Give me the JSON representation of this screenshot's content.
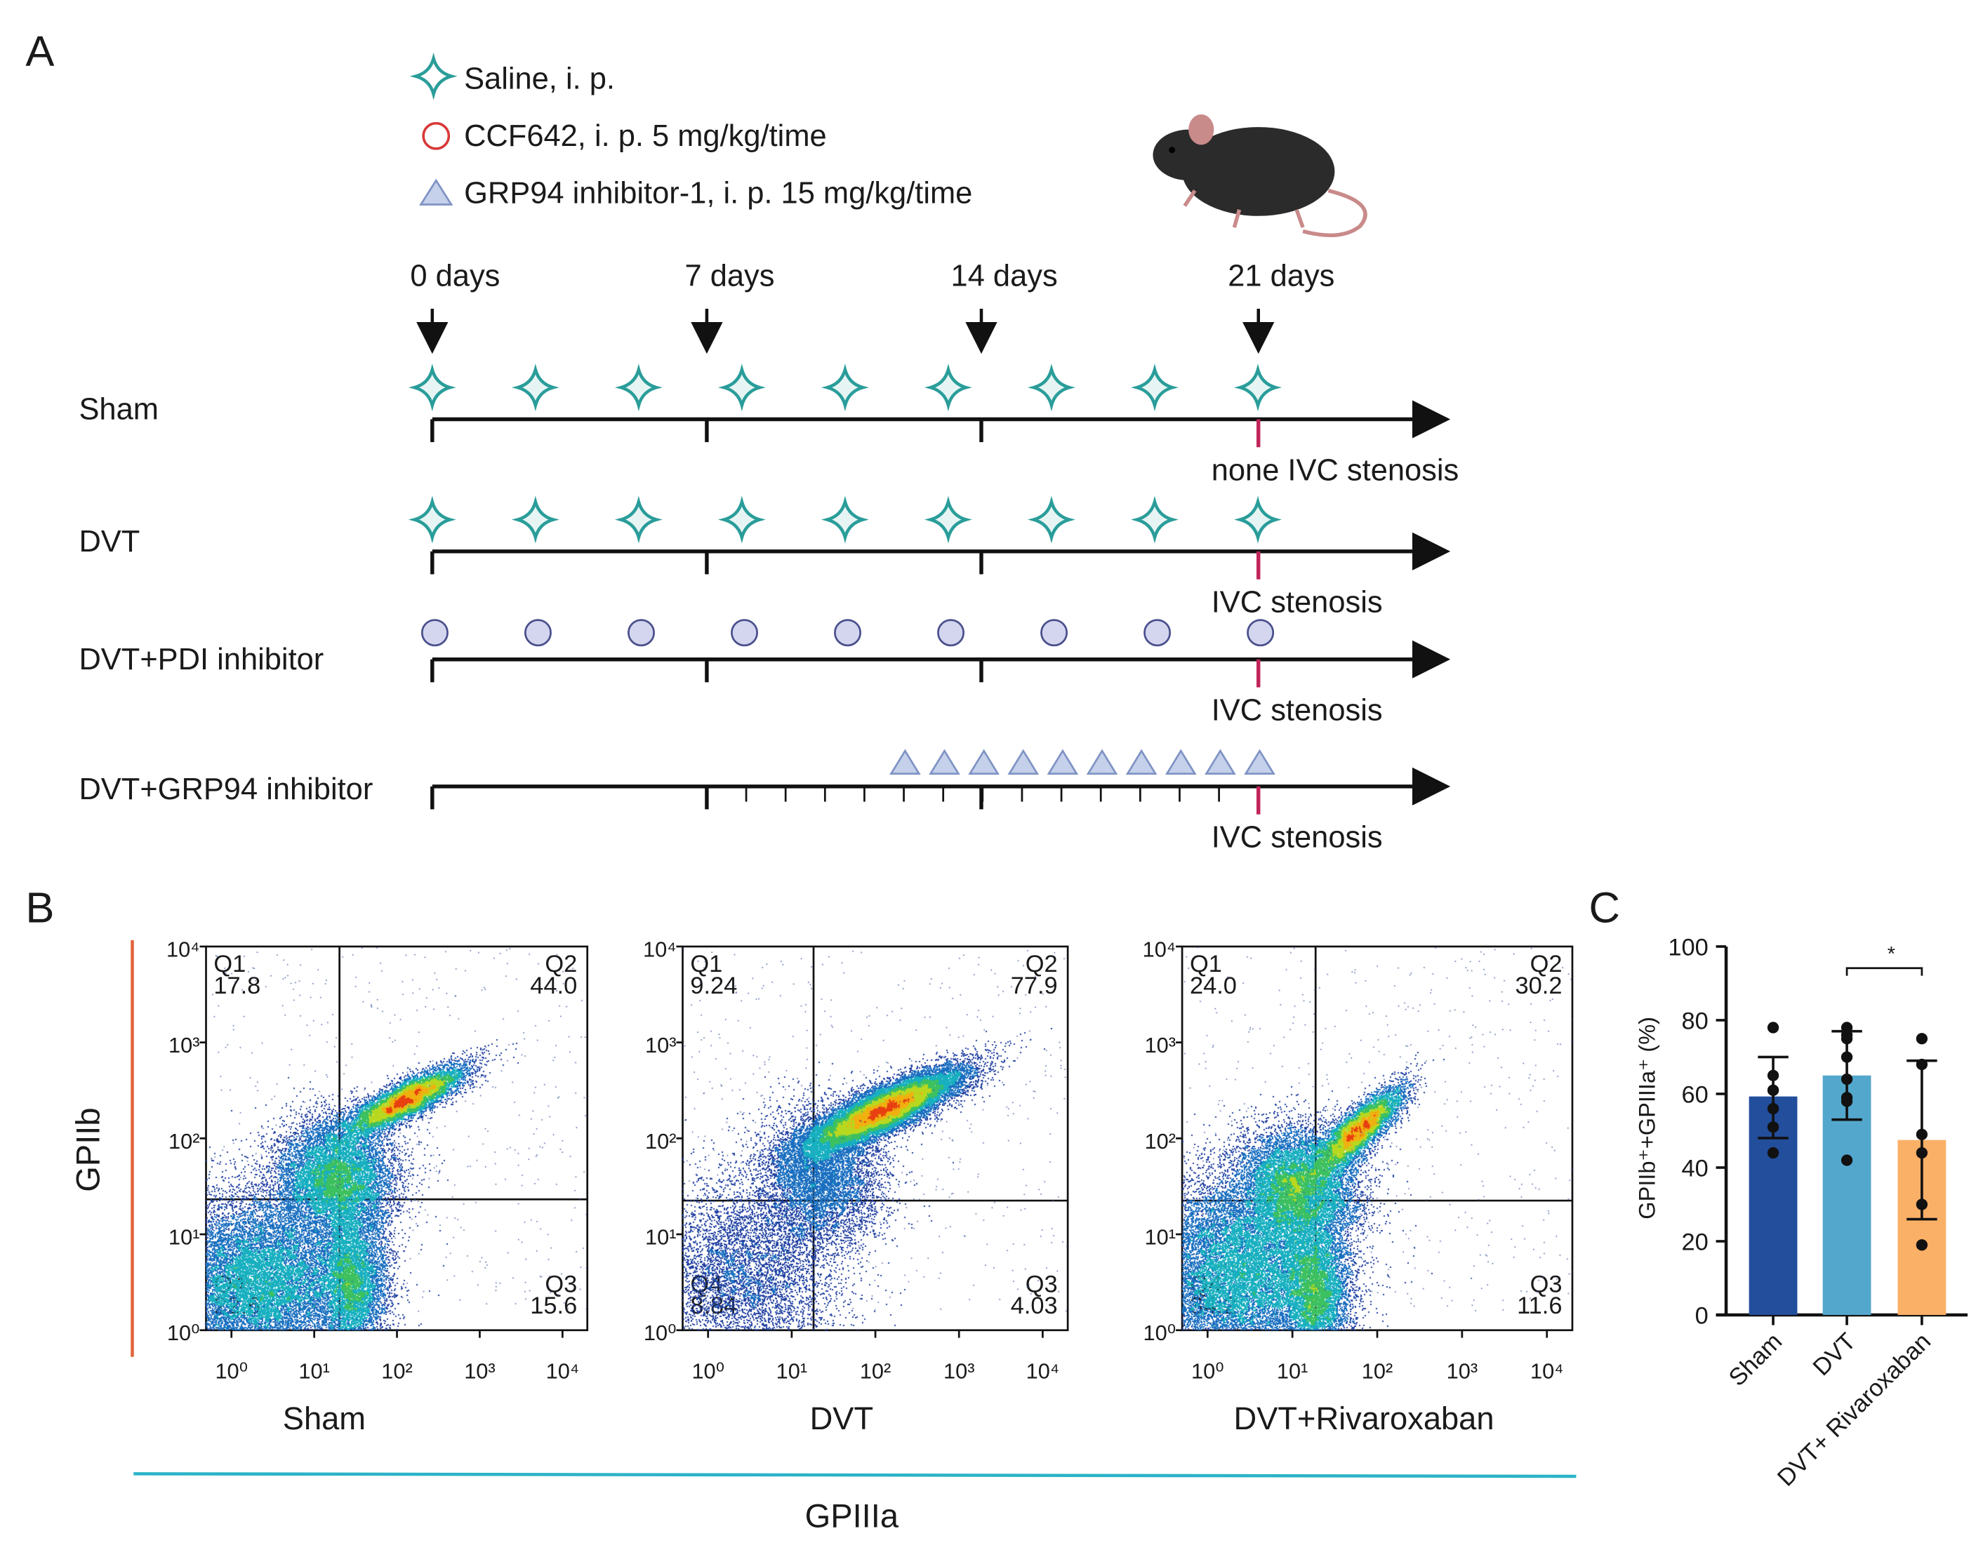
{
  "panels": {
    "a": "A",
    "b": "B",
    "c": "C"
  },
  "legend": [
    {
      "icon": "star-icon",
      "label": "Saline, i. p.",
      "color": "#2a9d9a"
    },
    {
      "icon": "circle-icon",
      "label": "CCF642, i. p. 5 mg/kg/time",
      "color": "#d83a3a"
    },
    {
      "icon": "triangle-icon",
      "label": "GRP94 inhibitor-1, i. p. 15 mg/kg/time",
      "color": "#7f93c4"
    }
  ],
  "timeline": {
    "days": [
      "0 days",
      "7 days",
      "14 days",
      "21 days"
    ],
    "rows": [
      {
        "label": "Sham",
        "marker": "star",
        "note": "none IVC stenosis"
      },
      {
        "label": "DVT",
        "marker": "star",
        "note": "IVC stenosis"
      },
      {
        "label": "DVT+PDI inhibitor",
        "marker": "circle",
        "note": "IVC stenosis"
      },
      {
        "label": "DVT+GRP94 inhibitor",
        "marker": "triangle",
        "note": "IVC stenosis"
      }
    ]
  },
  "flow": {
    "y_label": "GPIIb",
    "x_label": "GPIIIa",
    "tick_labels": [
      "10⁰",
      "10¹",
      "10²",
      "10³",
      "10⁴"
    ],
    "plots": [
      {
        "name": "Sham",
        "q1": "17.8",
        "q2": "44.0",
        "q3": "15.6",
        "q4": "22.6"
      },
      {
        "name": "DVT",
        "q1": "9.24",
        "q2": "77.9",
        "q3": "4.03",
        "q4": "8.84"
      },
      {
        "name": "DVT+Rivaroxaban",
        "q1": "24.0",
        "q2": "30.2",
        "q3": "11.6",
        "q4": "34.2"
      }
    ],
    "quadrant_names": [
      "Q1",
      "Q2",
      "Q3",
      "Q4"
    ]
  },
  "chart_data": {
    "type": "bar",
    "ylabel": "GPIIb⁺+GPIIIa⁺ (%)",
    "ylim": [
      0,
      100
    ],
    "yticks": [
      "0",
      "20",
      "40",
      "60",
      "80",
      "100"
    ],
    "categories": [
      "Sham",
      "DVT",
      "DVT+ Rivaroxaban"
    ],
    "values": [
      59.3,
      65,
      47.5
    ],
    "errors_low": [
      48,
      53,
      26
    ],
    "errors_high": [
      70,
      77,
      69
    ],
    "points": [
      [
        78,
        65,
        61,
        61,
        56,
        51,
        44
      ],
      [
        78,
        76,
        75,
        70,
        64,
        59,
        58,
        42
      ],
      [
        75,
        68,
        49,
        44,
        30,
        19
      ]
    ],
    "colors": [
      "#224e9c",
      "#54a7cc",
      "#fbb067"
    ],
    "significance": {
      "between": [
        "DVT",
        "DVT+ Rivaroxaban"
      ],
      "label": "*"
    }
  }
}
